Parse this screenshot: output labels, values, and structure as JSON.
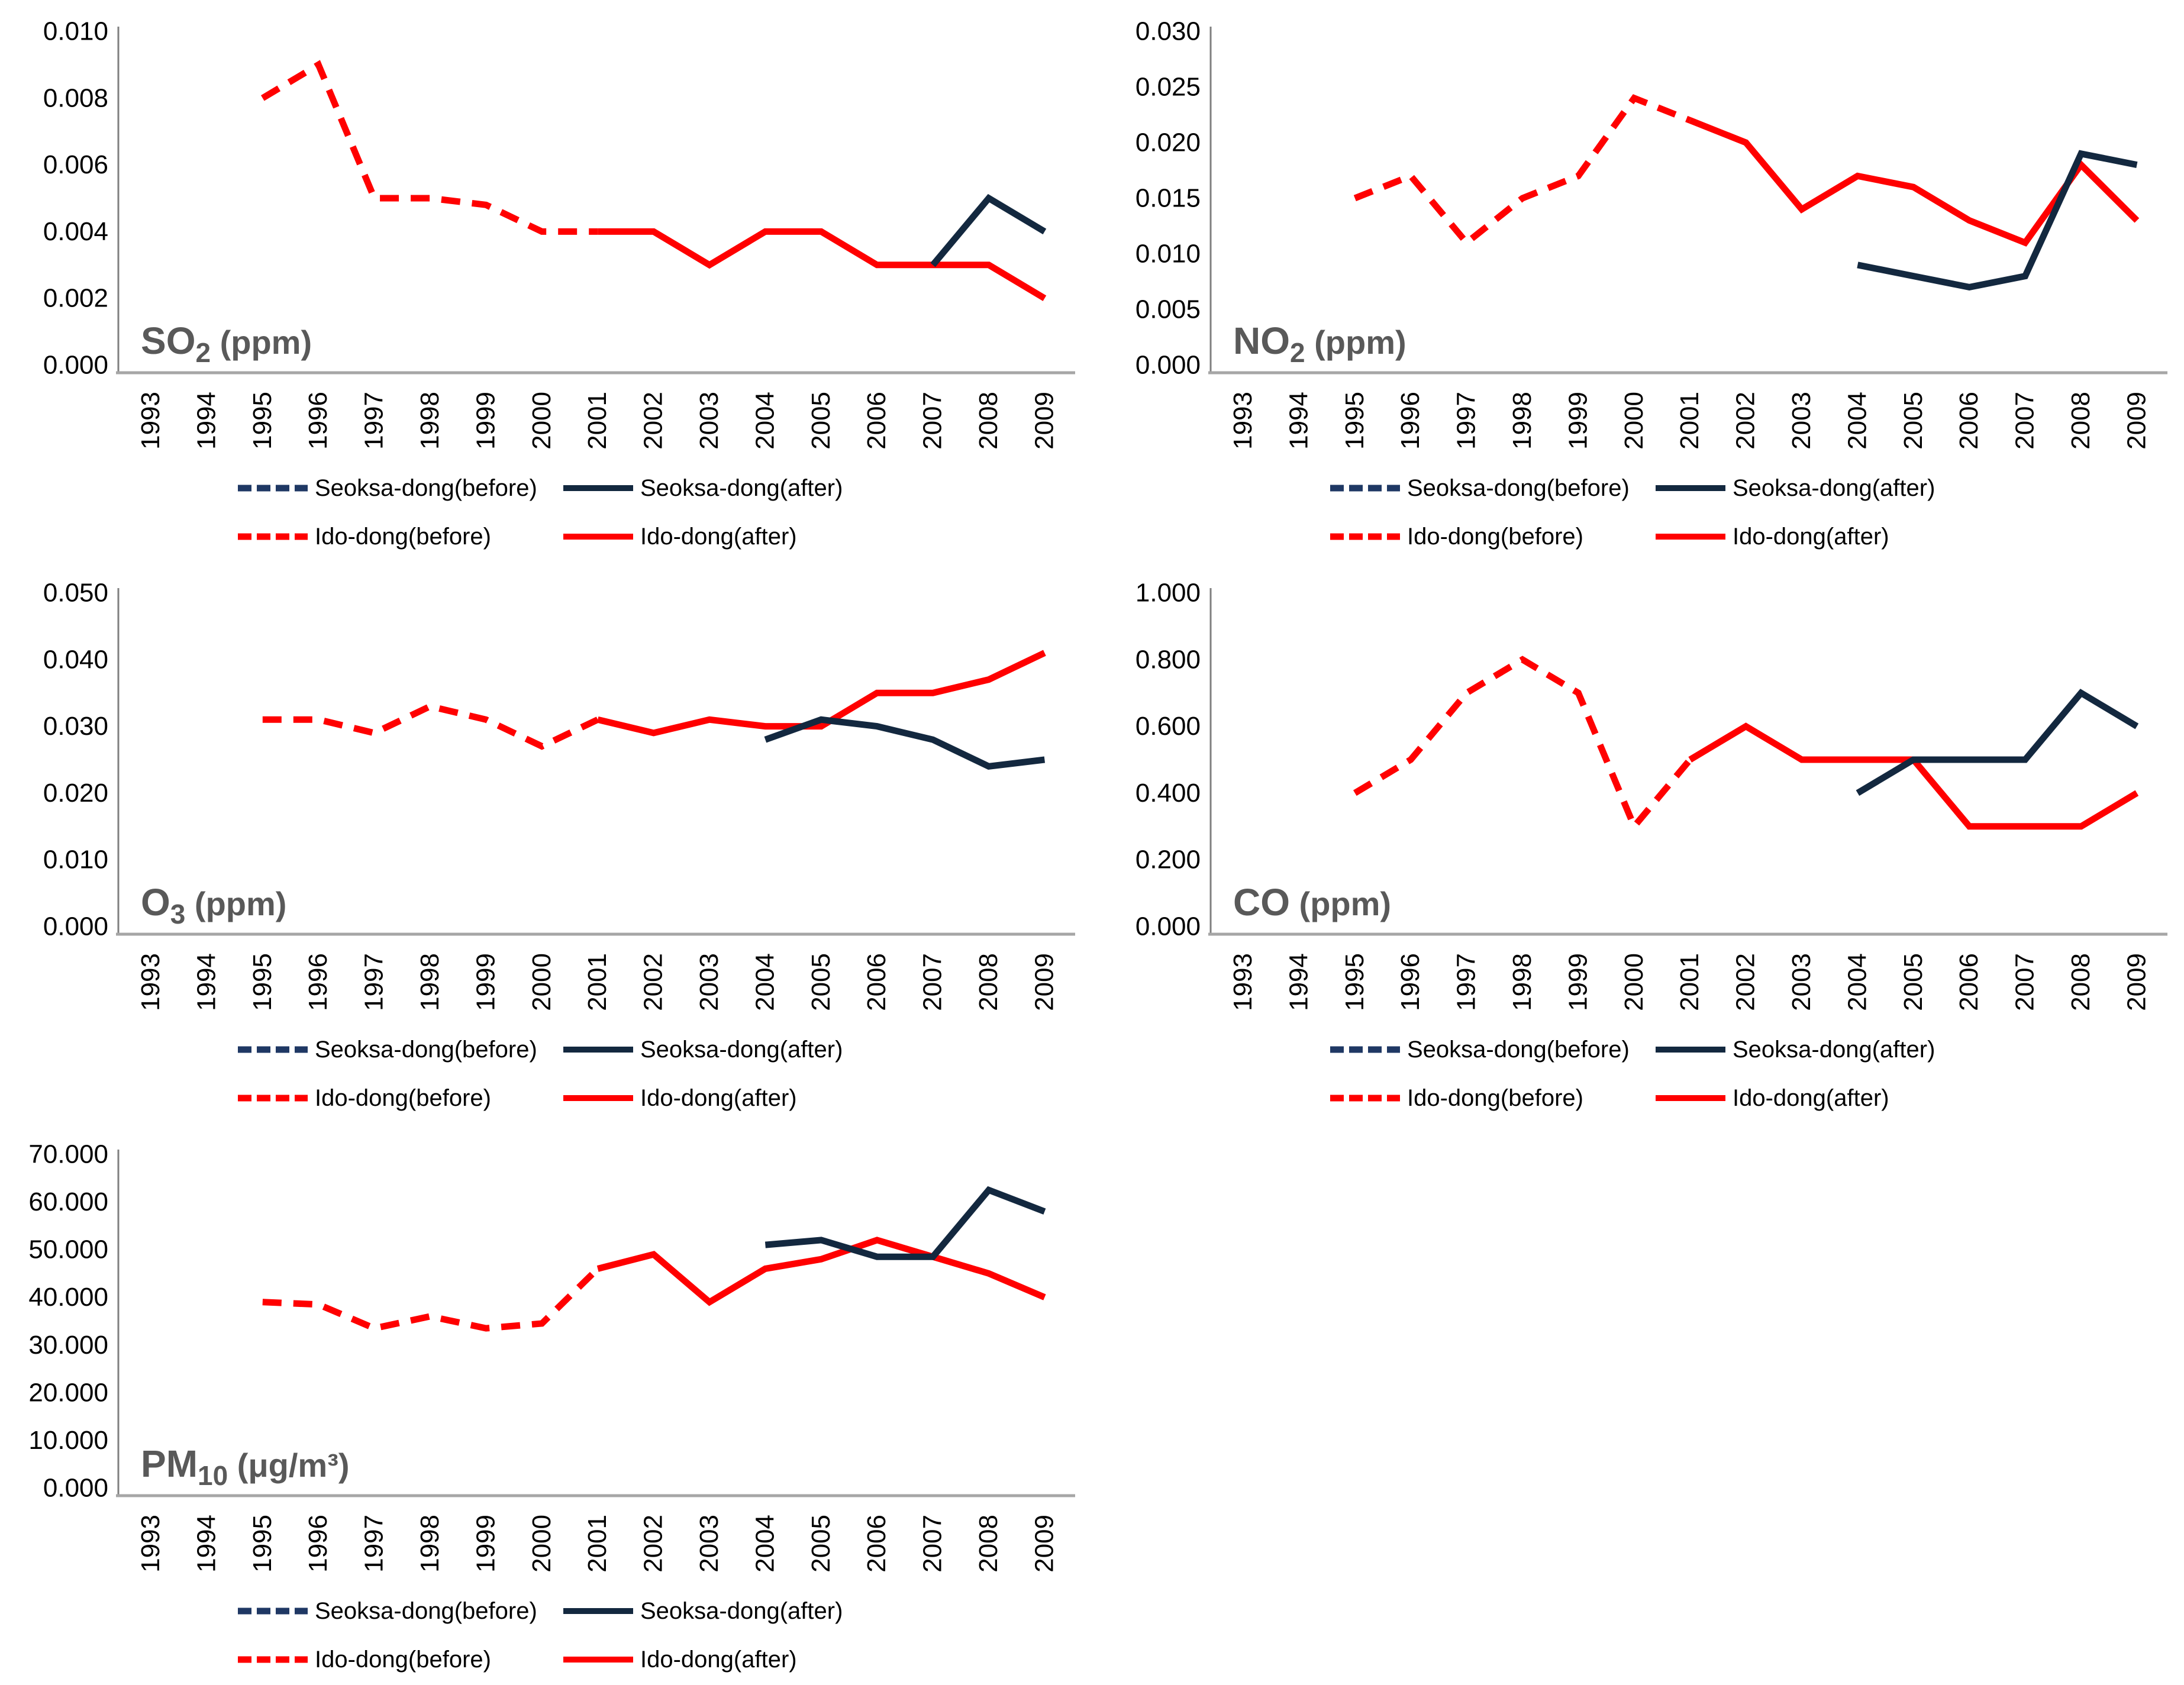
{
  "page": {
    "background": "#FFFFFF"
  },
  "colors": {
    "red": "#FF0000",
    "navy": "#13283F",
    "navy_legend_dash": "#1F3864",
    "title_gray": "#595959",
    "axis_line_gray": "#A6A6A6",
    "axis_stem_gray": "#7F7F7F",
    "tick_text": "#000000"
  },
  "chart_data": [
    {
      "id": "so2",
      "type": "line",
      "title": {
        "main": "SO",
        "sub": "2",
        "unit": " (ppm)"
      },
      "y_axis": {
        "max": 0.01,
        "step": 0.002,
        "decimals": 3,
        "tick_labels": [
          "0.010",
          "0.008",
          "0.006",
          "0.004",
          "0.002",
          "0.000"
        ]
      },
      "x_axis": {
        "tick_labels": [
          "1993",
          "1994",
          "1995",
          "1996",
          "1997",
          "1998",
          "1999",
          "2000",
          "2001",
          "2002",
          "2003",
          "2004",
          "2005",
          "2006",
          "2007",
          "2008",
          "2009"
        ]
      },
      "series": [
        {
          "name": "Seoksa-dong(before)",
          "style": "dashed",
          "color_key": "navy_legend_dash",
          "points": []
        },
        {
          "name": "Ido-dong(before)",
          "style": "dashed",
          "color_key": "red",
          "points": [
            [
              1995,
              0.008
            ],
            [
              1996,
              0.009
            ],
            [
              1997,
              0.005
            ],
            [
              1998,
              0.005
            ],
            [
              1999,
              0.0048
            ],
            [
              2000,
              0.004
            ],
            [
              2001,
              0.004
            ]
          ]
        },
        {
          "name": "Ido-dong(after)",
          "style": "solid",
          "color_key": "red",
          "points": [
            [
              2001,
              0.004
            ],
            [
              2002,
              0.004
            ],
            [
              2003,
              0.003
            ],
            [
              2004,
              0.004
            ],
            [
              2005,
              0.004
            ],
            [
              2006,
              0.003
            ],
            [
              2007,
              0.003
            ],
            [
              2008,
              0.003
            ],
            [
              2009,
              0.002
            ]
          ]
        },
        {
          "name": "Seoksa-dong(after)",
          "style": "solid",
          "color_key": "navy",
          "points": [
            [
              2007,
              0.003
            ],
            [
              2008,
              0.005
            ],
            [
              2009,
              0.004
            ]
          ]
        }
      ]
    },
    {
      "id": "no2",
      "type": "line",
      "title": {
        "main": "NO",
        "sub": "2",
        "unit": " (ppm)"
      },
      "y_axis": {
        "max": 0.03,
        "step": 0.005,
        "decimals": 3,
        "tick_labels": [
          "0.030",
          "0.025",
          "0.020",
          "0.015",
          "0.010",
          "0.005",
          "0.000"
        ]
      },
      "x_axis": {
        "tick_labels": [
          "1993",
          "1994",
          "1995",
          "1996",
          "1997",
          "1998",
          "1999",
          "2000",
          "2001",
          "2002",
          "2003",
          "2004",
          "2005",
          "2006",
          "2007",
          "2008",
          "2009"
        ]
      },
      "series": [
        {
          "name": "Seoksa-dong(before)",
          "style": "dashed",
          "color_key": "navy_legend_dash",
          "points": []
        },
        {
          "name": "Ido-dong(before)",
          "style": "dashed",
          "color_key": "red",
          "points": [
            [
              1995,
              0.015
            ],
            [
              1996,
              0.017
            ],
            [
              1997,
              0.011
            ],
            [
              1998,
              0.015
            ],
            [
              1999,
              0.017
            ],
            [
              2000,
              0.024
            ],
            [
              2001,
              0.022
            ]
          ]
        },
        {
          "name": "Ido-dong(after)",
          "style": "solid",
          "color_key": "red",
          "points": [
            [
              2001,
              0.022
            ],
            [
              2002,
              0.02
            ],
            [
              2003,
              0.014
            ],
            [
              2004,
              0.017
            ],
            [
              2005,
              0.016
            ],
            [
              2006,
              0.013
            ],
            [
              2007,
              0.011
            ],
            [
              2008,
              0.018
            ],
            [
              2009,
              0.013
            ]
          ]
        },
        {
          "name": "Seoksa-dong(after)",
          "style": "solid",
          "color_key": "navy",
          "points": [
            [
              2004,
              0.009
            ],
            [
              2005,
              0.008
            ],
            [
              2006,
              0.007
            ],
            [
              2007,
              0.008
            ],
            [
              2008,
              0.019
            ],
            [
              2009,
              0.018
            ]
          ]
        }
      ]
    },
    {
      "id": "o3",
      "type": "line",
      "title": {
        "main": "O",
        "sub": "3",
        "unit": " (ppm)"
      },
      "y_axis": {
        "max": 0.05,
        "step": 0.01,
        "decimals": 3,
        "tick_labels": [
          "0.050",
          "0.040",
          "0.030",
          "0.020",
          "0.010",
          "0.000"
        ]
      },
      "x_axis": {
        "tick_labels": [
          "1993",
          "1994",
          "1995",
          "1996",
          "1997",
          "1998",
          "1999",
          "2000",
          "2001",
          "2002",
          "2003",
          "2004",
          "2005",
          "2006",
          "2007",
          "2008",
          "2009"
        ]
      },
      "series": [
        {
          "name": "Seoksa-dong(before)",
          "style": "dashed",
          "color_key": "navy_legend_dash",
          "points": []
        },
        {
          "name": "Ido-dong(before)",
          "style": "dashed",
          "color_key": "red",
          "points": [
            [
              1995,
              0.031
            ],
            [
              1996,
              0.031
            ],
            [
              1997,
              0.029
            ],
            [
              1998,
              0.033
            ],
            [
              1999,
              0.031
            ],
            [
              2000,
              0.027
            ],
            [
              2001,
              0.031
            ]
          ]
        },
        {
          "name": "Ido-dong(after)",
          "style": "solid",
          "color_key": "red",
          "points": [
            [
              2001,
              0.031
            ],
            [
              2002,
              0.029
            ],
            [
              2003,
              0.031
            ],
            [
              2004,
              0.03
            ],
            [
              2005,
              0.03
            ],
            [
              2006,
              0.035
            ],
            [
              2007,
              0.035
            ],
            [
              2008,
              0.037
            ],
            [
              2009,
              0.041
            ]
          ]
        },
        {
          "name": "Seoksa-dong(after)",
          "style": "solid",
          "color_key": "navy",
          "points": [
            [
              2004,
              0.028
            ],
            [
              2005,
              0.031
            ],
            [
              2006,
              0.03
            ],
            [
              2007,
              0.028
            ],
            [
              2008,
              0.024
            ],
            [
              2009,
              0.025
            ]
          ]
        }
      ]
    },
    {
      "id": "co",
      "type": "line",
      "title": {
        "main": "CO",
        "sub": "",
        "unit": " (ppm)"
      },
      "y_axis": {
        "max": 1.0,
        "step": 0.2,
        "decimals": 3,
        "tick_labels": [
          "1.000",
          "0.800",
          "0.600",
          "0.400",
          "0.200",
          "0.000"
        ]
      },
      "x_axis": {
        "tick_labels": [
          "1993",
          "1994",
          "1995",
          "1996",
          "1997",
          "1998",
          "1999",
          "2000",
          "2001",
          "2002",
          "2003",
          "2004",
          "2005",
          "2006",
          "2007",
          "2008",
          "2009"
        ]
      },
      "series": [
        {
          "name": "Seoksa-dong(before)",
          "style": "dashed",
          "color_key": "navy_legend_dash",
          "points": []
        },
        {
          "name": "Ido-dong(before)",
          "style": "dashed",
          "color_key": "red",
          "points": [
            [
              1995,
              0.4
            ],
            [
              1996,
              0.5
            ],
            [
              1997,
              0.7
            ],
            [
              1998,
              0.8
            ],
            [
              1999,
              0.7
            ],
            [
              2000,
              0.3
            ],
            [
              2001,
              0.5
            ]
          ]
        },
        {
          "name": "Ido-dong(after)",
          "style": "solid",
          "color_key": "red",
          "points": [
            [
              2001,
              0.5
            ],
            [
              2002,
              0.6
            ],
            [
              2003,
              0.5
            ],
            [
              2004,
              0.5
            ],
            [
              2005,
              0.5
            ],
            [
              2006,
              0.3
            ],
            [
              2007,
              0.3
            ],
            [
              2008,
              0.3
            ],
            [
              2009,
              0.4
            ]
          ]
        },
        {
          "name": "Seoksa-dong(after)",
          "style": "solid",
          "color_key": "navy",
          "points": [
            [
              2004,
              0.4
            ],
            [
              2005,
              0.5
            ],
            [
              2006,
              0.5
            ],
            [
              2007,
              0.5
            ],
            [
              2008,
              0.7
            ],
            [
              2009,
              0.6
            ]
          ]
        }
      ]
    },
    {
      "id": "pm10",
      "type": "line",
      "title": {
        "main": "PM",
        "sub": "10",
        "unit": " (μg/m³)"
      },
      "y_axis": {
        "max": 70.0,
        "step": 10.0,
        "decimals": 3,
        "tick_labels": [
          "70.000",
          "60.000",
          "50.000",
          "40.000",
          "30.000",
          "20.000",
          "10.000",
          "0.000"
        ]
      },
      "x_axis": {
        "tick_labels": [
          "1993",
          "1994",
          "1995",
          "1996",
          "1997",
          "1998",
          "1999",
          "2000",
          "2001",
          "2002",
          "2003",
          "2004",
          "2005",
          "2006",
          "2007",
          "2008",
          "2009"
        ]
      },
      "series": [
        {
          "name": "Seoksa-dong(before)",
          "style": "dashed",
          "color_key": "navy_legend_dash",
          "points": []
        },
        {
          "name": "Ido-dong(before)",
          "style": "dashed",
          "color_key": "red",
          "points": [
            [
              1995,
              39
            ],
            [
              1996,
              38.5
            ],
            [
              1997,
              33.5
            ],
            [
              1998,
              36
            ],
            [
              1999,
              33.5
            ],
            [
              2000,
              34.5
            ],
            [
              2001,
              46
            ]
          ]
        },
        {
          "name": "Ido-dong(after)",
          "style": "solid",
          "color_key": "red",
          "points": [
            [
              2001,
              46
            ],
            [
              2002,
              49
            ],
            [
              2003,
              39
            ],
            [
              2004,
              46
            ],
            [
              2005,
              48
            ],
            [
              2006,
              52
            ],
            [
              2007,
              48.5
            ],
            [
              2008,
              45
            ],
            [
              2009,
              40
            ]
          ]
        },
        {
          "name": "Seoksa-dong(after)",
          "style": "solid",
          "color_key": "navy",
          "points": [
            [
              2004,
              51
            ],
            [
              2005,
              52
            ],
            [
              2006,
              48.5
            ],
            [
              2007,
              48.5
            ],
            [
              2008,
              62.5
            ],
            [
              2009,
              58
            ]
          ]
        }
      ]
    }
  ]
}
